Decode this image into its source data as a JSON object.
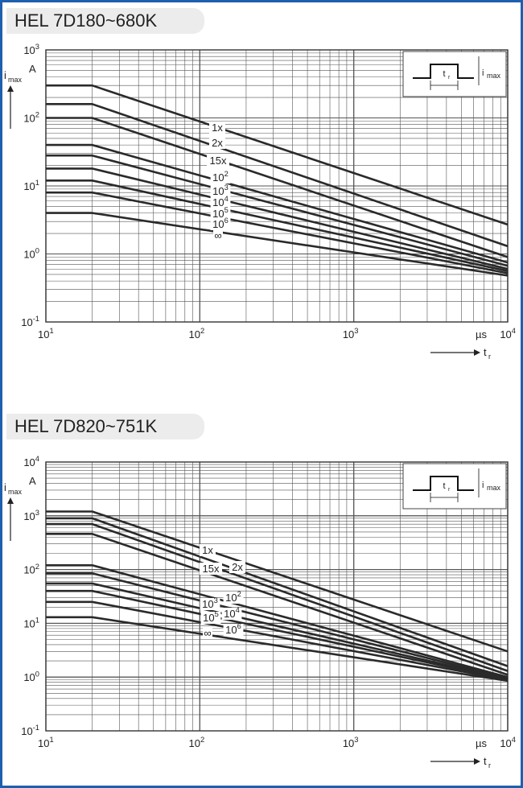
{
  "chart_data": [
    {
      "type": "line",
      "title": "HEL 7D180~680K",
      "ylabel": "i max",
      "y_unit": "A",
      "xlabel": "t r",
      "x_unit": "µs",
      "log_x": true,
      "log_y": true,
      "xlim": [
        10,
        10000
      ],
      "ylim": [
        0.1,
        1000
      ],
      "grid": true,
      "x_ticks": [
        {
          "base": "10",
          "exp": "1"
        },
        {
          "base": "10",
          "exp": "2"
        },
        {
          "base": "10",
          "exp": "3"
        },
        {
          "base": "10",
          "exp": "4"
        }
      ],
      "y_ticks": [
        {
          "base": "10",
          "exp": "-1"
        },
        {
          "base": "10",
          "exp": "0"
        },
        {
          "base": "10",
          "exp": "1"
        },
        {
          "base": "10",
          "exp": "2"
        },
        {
          "base": "10",
          "exp": "3"
        }
      ],
      "inset": {
        "pulse_label": "t r",
        "amp_label": "i max"
      },
      "series": [
        {
          "label": {
            "base": "1x",
            "exp": ""
          },
          "x": [
            10,
            20,
            10000
          ],
          "y": [
            300,
            300,
            2.7
          ]
        },
        {
          "label": {
            "base": "2x",
            "exp": ""
          },
          "x": [
            10,
            20,
            10000
          ],
          "y": [
            160,
            160,
            1.3
          ]
        },
        {
          "label": {
            "base": "15x",
            "exp": ""
          },
          "x": [
            10,
            20,
            10000
          ],
          "y": [
            100,
            100,
            0.9
          ]
        },
        {
          "label": {
            "base": "10",
            "exp": "2"
          },
          "x": [
            10,
            20,
            10000
          ],
          "y": [
            40,
            40,
            0.75
          ]
        },
        {
          "label": {
            "base": "10",
            "exp": "3"
          },
          "x": [
            10,
            20,
            10000
          ],
          "y": [
            28,
            28,
            0.67
          ]
        },
        {
          "label": {
            "base": "10",
            "exp": "4"
          },
          "x": [
            10,
            20,
            10000
          ],
          "y": [
            18,
            18,
            0.6
          ]
        },
        {
          "label": {
            "base": "10",
            "exp": "5"
          },
          "x": [
            10,
            20,
            10000
          ],
          "y": [
            12,
            12,
            0.56
          ]
        },
        {
          "label": {
            "base": "10",
            "exp": "6"
          },
          "x": [
            10,
            20,
            10000
          ],
          "y": [
            8,
            8,
            0.52
          ]
        },
        {
          "label": {
            "base": "∞",
            "exp": ""
          },
          "x": [
            10,
            20,
            10000
          ],
          "y": [
            4,
            4,
            0.48
          ]
        }
      ]
    },
    {
      "type": "line",
      "title": "HEL 7D820~751K",
      "ylabel": "i max",
      "y_unit": "A",
      "xlabel": "t r",
      "x_unit": "µs",
      "log_x": true,
      "log_y": true,
      "xlim": [
        10,
        10000
      ],
      "ylim": [
        0.1,
        10000
      ],
      "grid": true,
      "x_ticks": [
        {
          "base": "10",
          "exp": "1"
        },
        {
          "base": "10",
          "exp": "2"
        },
        {
          "base": "10",
          "exp": "3"
        },
        {
          "base": "10",
          "exp": "4"
        }
      ],
      "y_ticks": [
        {
          "base": "10",
          "exp": "-1"
        },
        {
          "base": "10",
          "exp": "0"
        },
        {
          "base": "10",
          "exp": "1"
        },
        {
          "base": "10",
          "exp": "2"
        },
        {
          "base": "10",
          "exp": "3"
        },
        {
          "base": "10",
          "exp": "4"
        }
      ],
      "inset": {
        "pulse_label": "t r",
        "amp_label": "i max"
      },
      "series": [
        {
          "label": {
            "base": "1x",
            "exp": ""
          },
          "x": [
            10,
            20,
            10000
          ],
          "y": [
            1200,
            1200,
            3
          ]
        },
        {
          "label": {
            "base": "2x",
            "exp": ""
          },
          "x": [
            10,
            20,
            10000
          ],
          "y": [
            900,
            900,
            1.6
          ]
        },
        {
          "label": {
            "base": "15x",
            "exp": ""
          },
          "x": [
            10,
            20,
            10000
          ],
          "y": [
            700,
            700,
            1.3
          ]
        },
        {
          "label": {
            "base": "",
            "exp": ""
          },
          "x": [
            10,
            20,
            10000
          ],
          "y": [
            460,
            460,
            1.1
          ]
        },
        {
          "label": {
            "base": "10",
            "exp": "2"
          },
          "x": [
            10,
            20,
            10000
          ],
          "y": [
            120,
            120,
            1.0
          ]
        },
        {
          "label": {
            "base": "10",
            "exp": "3"
          },
          "x": [
            10,
            20,
            10000
          ],
          "y": [
            85,
            85,
            0.95
          ]
        },
        {
          "label": {
            "base": "10",
            "exp": "4"
          },
          "x": [
            10,
            20,
            10000
          ],
          "y": [
            55,
            55,
            0.92
          ]
        },
        {
          "label": {
            "base": "10",
            "exp": "5"
          },
          "x": [
            10,
            20,
            10000
          ],
          "y": [
            40,
            40,
            0.9
          ]
        },
        {
          "label": {
            "base": "10",
            "exp": "6"
          },
          "x": [
            10,
            20,
            10000
          ],
          "y": [
            25,
            25,
            0.88
          ]
        },
        {
          "label": {
            "base": "∞",
            "exp": ""
          },
          "x": [
            10,
            20,
            10000
          ],
          "y": [
            13,
            13,
            0.85
          ]
        }
      ]
    }
  ]
}
